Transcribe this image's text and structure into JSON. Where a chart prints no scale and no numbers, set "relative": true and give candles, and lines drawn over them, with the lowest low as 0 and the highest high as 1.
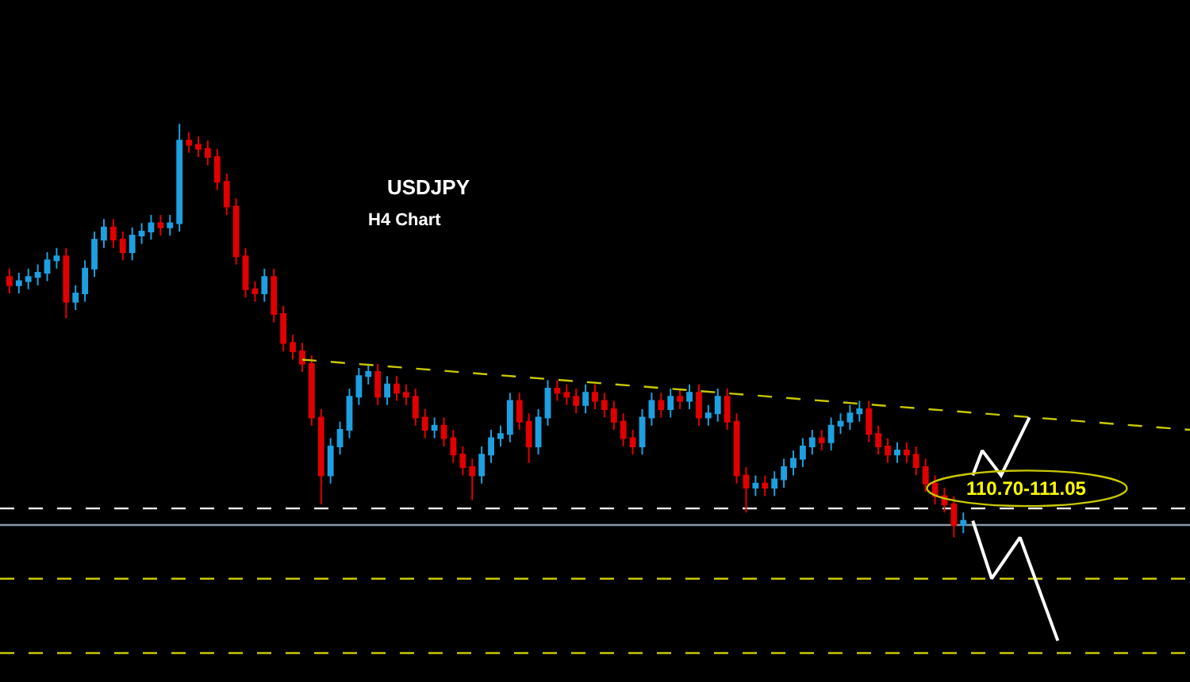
{
  "chart_data": {
    "type": "candlestick",
    "title": "USDJPY",
    "subtitle": "H4 Chart",
    "relative": true,
    "categories": [
      null,
      null,
      null,
      null,
      null,
      null,
      null,
      null,
      null,
      null,
      null,
      null,
      null,
      null,
      null,
      null,
      null,
      null,
      null,
      null,
      null,
      null,
      null,
      null,
      null,
      null,
      null,
      null,
      null,
      null,
      null,
      null,
      null,
      null,
      null,
      null,
      null,
      null,
      null,
      null,
      null,
      null,
      null,
      null,
      null,
      null,
      null,
      null,
      null,
      null,
      null,
      null,
      null,
      null,
      null,
      null,
      null,
      null,
      null,
      null,
      null,
      null,
      null,
      null,
      null,
      null,
      null,
      null,
      null,
      null,
      null,
      null,
      null,
      null,
      null,
      null,
      null,
      null,
      null,
      null,
      null,
      null,
      null,
      null,
      null,
      null,
      null,
      null,
      null,
      null,
      null,
      null,
      null,
      null,
      null,
      null,
      null,
      null,
      null,
      null,
      null,
      null,
      null,
      null,
      null,
      null,
      null,
      null,
      null,
      null,
      null,
      null,
      null,
      null,
      null,
      null,
      null,
      null,
      null,
      null,
      null,
      null,
      null,
      null,
      null,
      null
    ],
    "ohlc": [
      [
        0.63,
        0.65,
        0.59,
        0.61
      ],
      [
        0.61,
        0.64,
        0.59,
        0.62
      ],
      [
        0.62,
        0.65,
        0.6,
        0.63
      ],
      [
        0.63,
        0.66,
        0.61,
        0.64
      ],
      [
        0.64,
        0.69,
        0.62,
        0.67
      ],
      [
        0.67,
        0.7,
        0.65,
        0.68
      ],
      [
        0.68,
        0.7,
        0.53,
        0.57
      ],
      [
        0.57,
        0.61,
        0.55,
        0.59
      ],
      [
        0.59,
        0.67,
        0.57,
        0.65
      ],
      [
        0.65,
        0.74,
        0.63,
        0.72
      ],
      [
        0.72,
        0.77,
        0.7,
        0.75
      ],
      [
        0.75,
        0.77,
        0.7,
        0.72
      ],
      [
        0.72,
        0.74,
        0.67,
        0.69
      ],
      [
        0.69,
        0.75,
        0.67,
        0.73
      ],
      [
        0.73,
        0.76,
        0.71,
        0.74
      ],
      [
        0.74,
        0.78,
        0.72,
        0.76
      ],
      [
        0.76,
        0.78,
        0.73,
        0.75
      ],
      [
        0.75,
        0.78,
        0.73,
        0.76
      ],
      [
        0.76,
        1.0,
        0.74,
        0.96
      ],
      [
        0.96,
        0.98,
        0.93,
        0.95
      ],
      [
        0.95,
        0.97,
        0.92,
        0.94
      ],
      [
        0.94,
        0.96,
        0.9,
        0.92
      ],
      [
        0.92,
        0.94,
        0.84,
        0.86
      ],
      [
        0.86,
        0.88,
        0.78,
        0.8
      ],
      [
        0.8,
        0.82,
        0.66,
        0.68
      ],
      [
        0.68,
        0.7,
        0.58,
        0.6
      ],
      [
        0.6,
        0.62,
        0.57,
        0.59
      ],
      [
        0.59,
        0.65,
        0.57,
        0.63
      ],
      [
        0.63,
        0.65,
        0.52,
        0.54
      ],
      [
        0.54,
        0.56,
        0.45,
        0.47
      ],
      [
        0.47,
        0.49,
        0.43,
        0.45
      ],
      [
        0.45,
        0.47,
        0.4,
        0.42
      ],
      [
        0.42,
        0.44,
        0.27,
        0.29
      ],
      [
        0.29,
        0.31,
        0.08,
        0.15
      ],
      [
        0.15,
        0.24,
        0.13,
        0.22
      ],
      [
        0.22,
        0.28,
        0.2,
        0.26
      ],
      [
        0.26,
        0.36,
        0.24,
        0.34
      ],
      [
        0.34,
        0.41,
        0.32,
        0.39
      ],
      [
        0.39,
        0.42,
        0.37,
        0.4
      ],
      [
        0.4,
        0.42,
        0.32,
        0.34
      ],
      [
        0.34,
        0.39,
        0.32,
        0.37
      ],
      [
        0.37,
        0.39,
        0.33,
        0.35
      ],
      [
        0.35,
        0.37,
        0.32,
        0.34
      ],
      [
        0.34,
        0.36,
        0.27,
        0.29
      ],
      [
        0.29,
        0.31,
        0.24,
        0.26
      ],
      [
        0.26,
        0.29,
        0.24,
        0.27
      ],
      [
        0.27,
        0.29,
        0.22,
        0.24
      ],
      [
        0.24,
        0.26,
        0.18,
        0.2
      ],
      [
        0.2,
        0.22,
        0.15,
        0.17
      ],
      [
        0.17,
        0.19,
        0.09,
        0.15
      ],
      [
        0.15,
        0.22,
        0.13,
        0.2
      ],
      [
        0.2,
        0.26,
        0.18,
        0.24
      ],
      [
        0.24,
        0.27,
        0.22,
        0.25
      ],
      [
        0.25,
        0.35,
        0.23,
        0.33
      ],
      [
        0.33,
        0.35,
        0.26,
        0.28
      ],
      [
        0.28,
        0.3,
        0.18,
        0.22
      ],
      [
        0.22,
        0.31,
        0.2,
        0.29
      ],
      [
        0.29,
        0.38,
        0.27,
        0.36
      ],
      [
        0.36,
        0.38,
        0.33,
        0.35
      ],
      [
        0.35,
        0.37,
        0.32,
        0.34
      ],
      [
        0.34,
        0.36,
        0.3,
        0.32
      ],
      [
        0.32,
        0.37,
        0.3,
        0.35
      ],
      [
        0.35,
        0.37,
        0.31,
        0.33
      ],
      [
        0.33,
        0.35,
        0.29,
        0.31
      ],
      [
        0.31,
        0.33,
        0.26,
        0.28
      ],
      [
        0.28,
        0.3,
        0.22,
        0.24
      ],
      [
        0.24,
        0.26,
        0.2,
        0.22
      ],
      [
        0.22,
        0.31,
        0.2,
        0.29
      ],
      [
        0.29,
        0.35,
        0.27,
        0.33
      ],
      [
        0.33,
        0.35,
        0.29,
        0.31
      ],
      [
        0.31,
        0.36,
        0.29,
        0.34
      ],
      [
        0.34,
        0.36,
        0.31,
        0.33
      ],
      [
        0.33,
        0.37,
        0.31,
        0.35
      ],
      [
        0.35,
        0.37,
        0.27,
        0.29
      ],
      [
        0.29,
        0.32,
        0.27,
        0.3
      ],
      [
        0.3,
        0.36,
        0.28,
        0.34
      ],
      [
        0.34,
        0.36,
        0.26,
        0.28
      ],
      [
        0.28,
        0.3,
        0.13,
        0.15
      ],
      [
        0.15,
        0.17,
        0.06,
        0.12
      ],
      [
        0.12,
        0.15,
        0.1,
        0.13
      ],
      [
        0.13,
        0.15,
        0.1,
        0.12
      ],
      [
        0.12,
        0.16,
        0.1,
        0.14
      ],
      [
        0.14,
        0.19,
        0.12,
        0.17
      ],
      [
        0.17,
        0.21,
        0.15,
        0.19
      ],
      [
        0.19,
        0.24,
        0.17,
        0.22
      ],
      [
        0.22,
        0.26,
        0.2,
        0.24
      ],
      [
        0.24,
        0.26,
        0.21,
        0.23
      ],
      [
        0.23,
        0.29,
        0.21,
        0.27
      ],
      [
        0.27,
        0.3,
        0.25,
        0.28
      ],
      [
        0.28,
        0.32,
        0.26,
        0.3
      ],
      [
        0.3,
        0.33,
        0.28,
        0.31
      ],
      [
        0.31,
        0.33,
        0.23,
        0.25
      ],
      [
        0.25,
        0.27,
        0.2,
        0.22
      ],
      [
        0.22,
        0.24,
        0.18,
        0.2
      ],
      [
        0.2,
        0.23,
        0.18,
        0.21
      ],
      [
        0.21,
        0.23,
        0.18,
        0.2
      ],
      [
        0.2,
        0.22,
        0.15,
        0.17
      ],
      [
        0.17,
        0.19,
        0.11,
        0.13
      ],
      [
        0.13,
        0.15,
        0.08,
        0.1
      ],
      [
        0.1,
        0.12,
        0.06,
        0.08
      ],
      [
        0.08,
        0.1,
        0.0,
        0.03
      ],
      [
        0.03,
        0.06,
        0.01,
        0.04
      ],
      null,
      null,
      null,
      null,
      null,
      null,
      null,
      null,
      null,
      null,
      null,
      null,
      null,
      null,
      null,
      null,
      null,
      null,
      null,
      null,
      null,
      null,
      null,
      null
    ],
    "colors": [
      "#e00000",
      "#1e9fe0",
      "#1e9fe0",
      "#1e9fe0",
      "#1e9fe0",
      "#1e9fe0",
      "#e00000",
      "#1e9fe0",
      "#1e9fe0",
      "#1e9fe0",
      "#1e9fe0",
      "#e00000",
      "#e00000",
      "#1e9fe0",
      "#1e9fe0",
      "#1e9fe0",
      "#e00000",
      "#1e9fe0",
      "#1e9fe0",
      "#e00000",
      "#e00000",
      "#e00000",
      "#e00000",
      "#e00000",
      "#e00000",
      "#e00000",
      "#e00000",
      "#1e9fe0",
      "#e00000",
      "#e00000",
      "#e00000",
      "#e00000",
      "#e00000",
      "#e00000",
      "#1e9fe0",
      "#1e9fe0",
      "#1e9fe0",
      "#1e9fe0",
      "#1e9fe0",
      "#e00000",
      "#1e9fe0",
      "#e00000",
      "#e00000",
      "#e00000",
      "#e00000",
      "#1e9fe0",
      "#e00000",
      "#e00000",
      "#e00000",
      "#e00000",
      "#1e9fe0",
      "#1e9fe0",
      "#1e9fe0",
      "#1e9fe0",
      "#e00000",
      "#e00000",
      "#1e9fe0",
      "#1e9fe0",
      "#e00000",
      "#e00000",
      "#e00000",
      "#1e9fe0",
      "#e00000",
      "#e00000",
      "#e00000",
      "#e00000",
      "#e00000",
      "#1e9fe0",
      "#1e9fe0",
      "#e00000",
      "#1e9fe0",
      "#e00000",
      "#1e9fe0",
      "#e00000",
      "#1e9fe0",
      "#1e9fe0",
      "#e00000",
      "#e00000",
      "#e00000",
      "#1e9fe0",
      "#e00000",
      "#1e9fe0",
      "#1e9fe0",
      "#1e9fe0",
      "#1e9fe0",
      "#1e9fe0",
      "#e00000",
      "#1e9fe0",
      "#1e9fe0",
      "#1e9fe0",
      "#1e9fe0",
      "#e00000",
      "#e00000",
      "#e00000",
      "#1e9fe0",
      "#e00000",
      "#e00000",
      "#e00000",
      "#e00000",
      "#e00000",
      "#e00000",
      "#1e9fe0",
      null,
      null,
      null,
      null,
      null,
      null,
      null,
      null,
      null,
      null,
      null,
      null,
      null,
      null,
      null,
      null,
      null,
      null,
      null,
      null,
      null,
      null,
      null,
      null
    ],
    "series": [
      {
        "type": "line",
        "color": "#c8c800",
        "line_style": "dashed",
        "values": [
          null,
          null,
          null,
          null,
          null,
          null,
          null,
          null,
          null,
          null,
          null,
          null,
          null,
          null,
          null,
          null,
          null,
          null,
          null,
          null,
          null,
          null,
          null,
          null,
          null,
          null,
          null,
          null,
          null,
          null,
          null,
          0.43,
          null,
          null,
          null,
          null,
          null,
          null,
          null,
          null,
          null,
          null,
          null,
          null,
          null,
          null,
          null,
          null,
          null,
          null,
          null,
          null,
          null,
          null,
          null,
          null,
          null,
          null,
          null,
          null,
          null,
          null,
          null,
          null,
          null,
          null,
          null,
          null,
          null,
          null,
          null,
          null,
          null,
          null,
          null,
          null,
          null,
          null,
          null,
          null,
          null,
          null,
          null,
          null,
          null,
          null,
          null,
          null,
          null,
          null,
          null,
          null,
          null,
          null,
          null,
          null,
          null,
          null,
          null,
          null,
          null,
          null,
          null,
          null,
          null,
          null,
          null,
          null,
          null,
          null,
          null,
          null,
          null,
          null,
          null,
          null,
          null,
          null,
          null,
          null,
          null,
          null,
          null,
          null,
          null,
          0.26
        ]
      },
      {
        "type": "line",
        "color": "#ffffff",
        "line_style": "solid",
        "values": [
          null,
          null,
          null,
          null,
          null,
          null,
          null,
          null,
          null,
          null,
          null,
          null,
          null,
          null,
          null,
          null,
          null,
          null,
          null,
          null,
          null,
          null,
          null,
          null,
          null,
          null,
          null,
          null,
          null,
          null,
          null,
          null,
          null,
          null,
          null,
          null,
          null,
          null,
          null,
          null,
          null,
          null,
          null,
          null,
          null,
          null,
          null,
          null,
          null,
          null,
          null,
          null,
          null,
          null,
          null,
          null,
          null,
          null,
          null,
          null,
          null,
          null,
          null,
          null,
          null,
          null,
          null,
          null,
          null,
          null,
          null,
          null,
          null,
          null,
          null,
          null,
          null,
          null,
          null,
          null,
          null,
          null,
          null,
          null,
          null,
          null,
          null,
          null,
          null,
          null,
          null,
          null,
          null,
          null,
          null,
          null,
          null,
          null,
          null,
          null,
          null,
          null,
          0.15,
          0.21,
          null,
          0.15,
          null,
          null,
          0.29,
          null,
          null,
          null,
          null,
          null,
          null,
          null,
          null,
          null,
          null,
          null,
          null,
          null,
          null,
          null,
          null,
          null
        ]
      },
      {
        "type": "line",
        "color": "#ffffff",
        "line_style": "solid",
        "values": [
          null,
          null,
          null,
          null,
          null,
          null,
          null,
          null,
          null,
          null,
          null,
          null,
          null,
          null,
          null,
          null,
          null,
          null,
          null,
          null,
          null,
          null,
          null,
          null,
          null,
          null,
          null,
          null,
          null,
          null,
          null,
          null,
          null,
          null,
          null,
          null,
          null,
          null,
          null,
          null,
          null,
          null,
          null,
          null,
          null,
          null,
          null,
          null,
          null,
          null,
          null,
          null,
          null,
          null,
          null,
          null,
          null,
          null,
          null,
          null,
          null,
          null,
          null,
          null,
          null,
          null,
          null,
          null,
          null,
          null,
          null,
          null,
          null,
          null,
          null,
          null,
          null,
          null,
          null,
          null,
          null,
          null,
          null,
          null,
          null,
          null,
          null,
          null,
          null,
          null,
          null,
          null,
          null,
          null,
          null,
          null,
          null,
          null,
          null,
          null,
          null,
          null,
          0.04,
          null,
          -0.1,
          null,
          null,
          0.0,
          null,
          null,
          null,
          -0.25,
          null,
          null,
          null,
          null,
          null,
          null,
          null,
          null,
          null,
          null,
          null,
          null,
          null,
          null
        ]
      }
    ],
    "ref_lines": [
      {
        "axis": "y",
        "value": 0.07,
        "color": "#ffffff",
        "line_style": "dashed"
      },
      {
        "axis": "y",
        "value": 0.03,
        "color": "#8a9aa8",
        "line_style": "solid"
      },
      {
        "axis": "y",
        "value": -0.1,
        "color": "#c8c800",
        "line_style": "dashed"
      },
      {
        "axis": "y",
        "value": -0.28,
        "color": "#c8c800",
        "line_style": "dashed"
      }
    ],
    "annotations": [
      "110.70-111.05"
    ]
  }
}
